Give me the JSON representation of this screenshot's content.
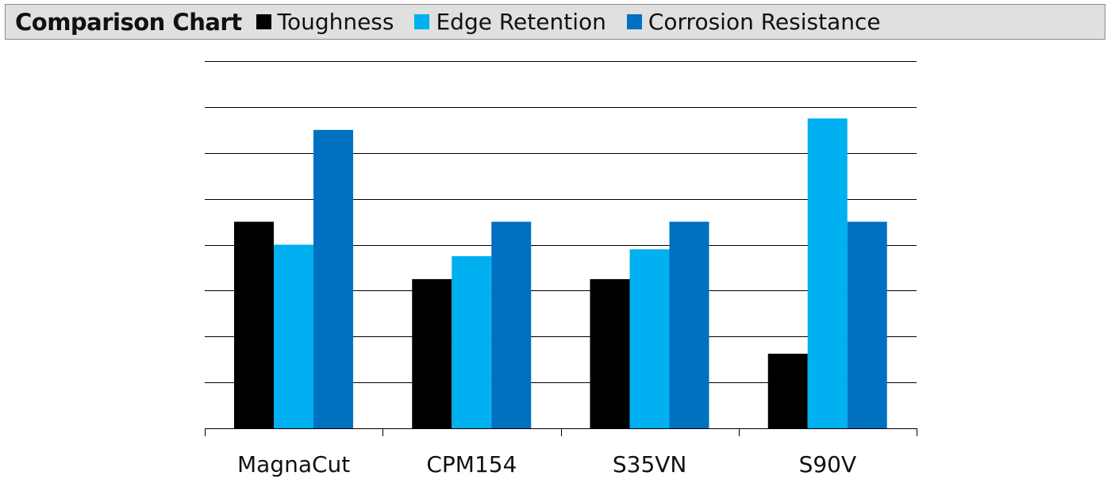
{
  "chart_data": {
    "type": "bar",
    "title": "Comparison Chart",
    "categories": [
      "MagnaCut",
      "CPM154",
      "S35VN",
      "S90V"
    ],
    "series": [
      {
        "name": "Toughness",
        "color": "#000000",
        "values": [
          4.5,
          3.25,
          3.25,
          1.625
        ]
      },
      {
        "name": "Edge Retention",
        "color": "#00b0f0",
        "values": [
          4.0,
          3.75,
          3.9,
          6.75
        ]
      },
      {
        "name": "Corrosion Resistance",
        "color": "#0070c0",
        "values": [
          6.5,
          4.5,
          4.5,
          4.5
        ]
      }
    ],
    "ylim": [
      0,
      8
    ],
    "grid": true,
    "legend": "top",
    "xlabel": "",
    "ylabel": ""
  }
}
